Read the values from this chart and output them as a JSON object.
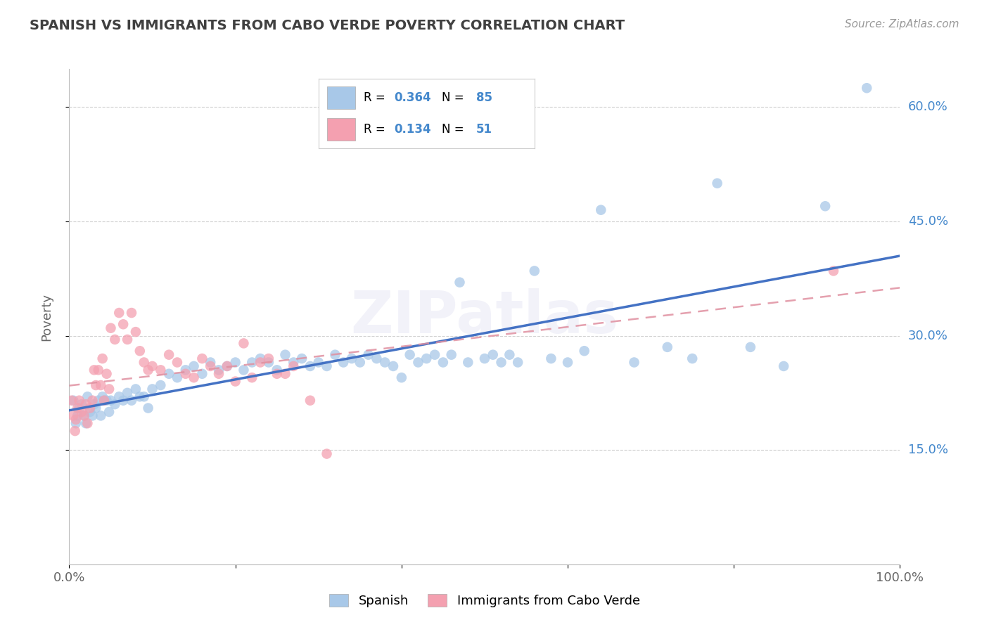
{
  "title": "SPANISH VS IMMIGRANTS FROM CABO VERDE POVERTY CORRELATION CHART",
  "source_text": "Source: ZipAtlas.com",
  "ylabel": "Poverty",
  "xlabel": "",
  "xlim": [
    0,
    1.0
  ],
  "ylim": [
    0.0,
    0.65
  ],
  "ytick_positions": [
    0.15,
    0.3,
    0.45,
    0.6
  ],
  "ytick_labels": [
    "15.0%",
    "30.0%",
    "45.0%",
    "60.0%"
  ],
  "grid_color": "#d0d0d0",
  "background_color": "#ffffff",
  "series1_color": "#a8c8e8",
  "series2_color": "#f4a0b0",
  "series1_label": "Spanish",
  "series2_label": "Immigrants from Cabo Verde",
  "series1_R": 0.364,
  "series1_N": 85,
  "series2_R": 0.134,
  "series2_N": 51,
  "series1_line_color": "#4472c4",
  "series2_line_color": "#e090a0",
  "watermark_text": "ZIPatlas",
  "title_color": "#404040",
  "legend_color": "#4488cc",
  "series1_x": [
    0.005,
    0.008,
    0.01,
    0.012,
    0.015,
    0.018,
    0.02,
    0.022,
    0.025,
    0.028,
    0.03,
    0.032,
    0.035,
    0.038,
    0.04,
    0.042,
    0.045,
    0.048,
    0.05,
    0.055,
    0.06,
    0.065,
    0.07,
    0.075,
    0.08,
    0.085,
    0.09,
    0.095,
    0.1,
    0.11,
    0.12,
    0.13,
    0.14,
    0.15,
    0.16,
    0.17,
    0.18,
    0.19,
    0.2,
    0.21,
    0.22,
    0.23,
    0.24,
    0.25,
    0.26,
    0.27,
    0.28,
    0.29,
    0.3,
    0.31,
    0.32,
    0.33,
    0.34,
    0.35,
    0.36,
    0.37,
    0.38,
    0.39,
    0.4,
    0.41,
    0.42,
    0.43,
    0.44,
    0.45,
    0.46,
    0.47,
    0.48,
    0.5,
    0.51,
    0.52,
    0.53,
    0.54,
    0.56,
    0.58,
    0.6,
    0.62,
    0.64,
    0.68,
    0.72,
    0.75,
    0.78,
    0.82,
    0.86,
    0.91,
    0.96
  ],
  "series1_y": [
    0.215,
    0.185,
    0.195,
    0.205,
    0.21,
    0.195,
    0.185,
    0.22,
    0.2,
    0.195,
    0.21,
    0.205,
    0.215,
    0.195,
    0.22,
    0.215,
    0.215,
    0.2,
    0.215,
    0.21,
    0.22,
    0.215,
    0.225,
    0.215,
    0.23,
    0.22,
    0.22,
    0.205,
    0.23,
    0.235,
    0.25,
    0.245,
    0.255,
    0.26,
    0.25,
    0.265,
    0.255,
    0.26,
    0.265,
    0.255,
    0.265,
    0.27,
    0.265,
    0.255,
    0.275,
    0.265,
    0.27,
    0.26,
    0.265,
    0.26,
    0.275,
    0.265,
    0.27,
    0.265,
    0.275,
    0.27,
    0.265,
    0.26,
    0.245,
    0.275,
    0.265,
    0.27,
    0.275,
    0.265,
    0.275,
    0.37,
    0.265,
    0.27,
    0.275,
    0.265,
    0.275,
    0.265,
    0.385,
    0.27,
    0.265,
    0.28,
    0.465,
    0.265,
    0.285,
    0.27,
    0.5,
    0.285,
    0.26,
    0.47,
    0.625
  ],
  "series2_x": [
    0.003,
    0.005,
    0.007,
    0.008,
    0.01,
    0.012,
    0.015,
    0.018,
    0.02,
    0.022,
    0.025,
    0.028,
    0.03,
    0.032,
    0.035,
    0.038,
    0.04,
    0.042,
    0.045,
    0.048,
    0.05,
    0.055,
    0.06,
    0.065,
    0.07,
    0.075,
    0.08,
    0.085,
    0.09,
    0.095,
    0.1,
    0.11,
    0.12,
    0.13,
    0.14,
    0.15,
    0.16,
    0.17,
    0.18,
    0.19,
    0.2,
    0.21,
    0.22,
    0.23,
    0.24,
    0.25,
    0.26,
    0.27,
    0.29,
    0.31,
    0.92
  ],
  "series2_y": [
    0.215,
    0.195,
    0.175,
    0.19,
    0.205,
    0.215,
    0.2,
    0.195,
    0.21,
    0.185,
    0.205,
    0.215,
    0.255,
    0.235,
    0.255,
    0.235,
    0.27,
    0.215,
    0.25,
    0.23,
    0.31,
    0.295,
    0.33,
    0.315,
    0.295,
    0.33,
    0.305,
    0.28,
    0.265,
    0.255,
    0.26,
    0.255,
    0.275,
    0.265,
    0.25,
    0.245,
    0.27,
    0.26,
    0.25,
    0.26,
    0.24,
    0.29,
    0.245,
    0.265,
    0.27,
    0.25,
    0.25,
    0.26,
    0.215,
    0.145,
    0.385
  ]
}
